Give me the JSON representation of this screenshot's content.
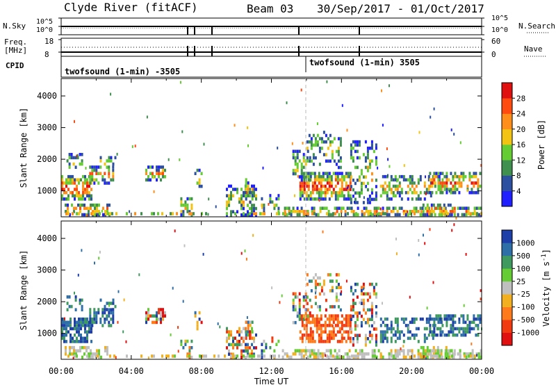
{
  "header": {
    "radar": "Clyde River (fitACF)",
    "beam": "Beam 03",
    "date_range": "30/Sep/2017 - 01/Oct/2017"
  },
  "param_panels": {
    "nsky_label": "N.Sky",
    "nsky_ticks": [
      "10^5",
      "10^0"
    ],
    "nsearch_label": "N.Search",
    "nsearch_ticks": [
      "10^5",
      "10^0"
    ],
    "freq_label_1": "Freq.",
    "freq_label_2": "[MHz]",
    "freq_ticks": [
      "18",
      "8"
    ],
    "nave_label": "Nave",
    "nave_ticks": [
      "60",
      "0"
    ],
    "cpid_label": "CPID",
    "cpid_modes": [
      "twofsound (1-min) -3505",
      "twofsound (1-min) 3505"
    ]
  },
  "chart_data": [
    {
      "type": "heatmap",
      "name": "power",
      "ylabel": "Slant Range [km]",
      "y_ticks": [
        1000,
        2000,
        3000,
        4000
      ],
      "ylim": [
        180,
        4550
      ],
      "xlim": [
        0,
        24
      ],
      "colorbar_label": "Power [dB]",
      "colorbar_ticks": [
        "4",
        "8",
        "12",
        "16",
        "20",
        "24",
        "28"
      ],
      "colorbar_colors": [
        "#1f1fff",
        "#2c4fa0",
        "#3f8f4f",
        "#66cc33",
        "#f2c312",
        "#ff8f1a",
        "#ff4a10",
        "#e01010"
      ]
    },
    {
      "type": "heatmap",
      "name": "velocity",
      "ylabel": "Slant Range [km]",
      "y_ticks": [
        1000,
        2000,
        3000,
        4000
      ],
      "ylim": [
        180,
        4550
      ],
      "xlim": [
        0,
        24
      ],
      "xlabel": "Time UT",
      "x_ticks": [
        "00:00",
        "04:00",
        "08:00",
        "12:00",
        "16:00",
        "20:00",
        "00:00"
      ],
      "colorbar_label": "Velocity [m s",
      "colorbar_label_sup": "-1",
      "colorbar_label_end": "]",
      "colorbar_ticks": [
        "1000",
        "500",
        "100",
        "25",
        "-25",
        "-100",
        "-500",
        "-1000"
      ],
      "colorbar_colors": [
        "#1f3fa8",
        "#2f6fa8",
        "#3f9a5f",
        "#66cc33",
        "#bfbfbf",
        "#f2b020",
        "#ff7a1a",
        "#f23a10",
        "#e01010"
      ]
    }
  ]
}
